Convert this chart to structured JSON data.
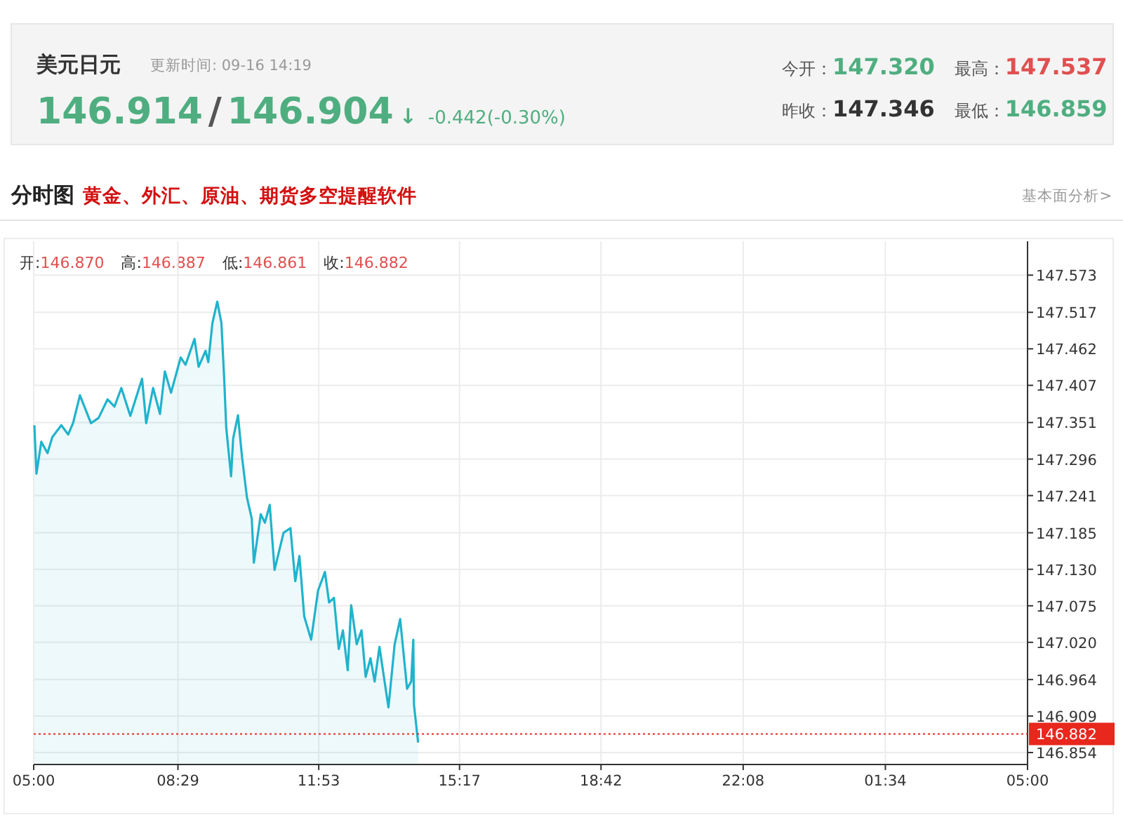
{
  "chart_data": {
    "type": "area",
    "title": "美元日元",
    "subtitle": "更新时间: 09-16 14:19",
    "annotations": [
      "146.914",
      "/",
      "146.904",
      "↓",
      "-0.442(-0.30%)",
      "今开：",
      "147.320",
      "最高：",
      "147.537",
      "昨收：",
      "147.346",
      "最低：",
      "146.859",
      "分时图",
      "黄金、外汇、原油、期货多空提醒软件",
      "基本面分析>",
      "开:",
      "146.870",
      "高:",
      "146.887",
      "低:",
      "146.861",
      "收:",
      "146.882"
    ],
    "x": [
      "--09-16T05:01",
      "--09-16T05:04",
      "--09-16T05:11",
      "--09-16T05:20",
      "--09-16T05:27",
      "--09-16T05:40",
      "--09-16T05:50",
      "--09-16T05:57",
      "--09-16T06:07",
      "--09-16T06:23",
      "--09-16T06:34",
      "--09-16T06:47",
      "--09-16T06:57",
      "--09-16T07:07",
      "--09-16T07:20",
      "--09-16T07:37",
      "--09-16T07:43",
      "--09-16T07:53",
      "--09-16T08:03",
      "--09-16T08:10",
      "--09-16T08:19",
      "--09-16T08:33",
      "--09-16T08:40",
      "--09-16T08:53",
      "--09-16T08:59",
      "--09-16T09:09",
      "--09-16T09:13",
      "--09-16T09:19",
      "--09-16T09:26",
      "--09-16T09:32",
      "--09-16T09:36",
      "--09-16T09:39",
      "--09-16T09:46",
      "--09-16T09:49",
      "--09-16T09:56",
      "--09-16T10:02",
      "--09-16T10:09",
      "--09-16T10:16",
      "--09-16T10:19",
      "--09-16T10:29",
      "--09-16T10:35",
      "--09-16T10:42",
      "--09-16T10:49",
      "--09-16T11:02",
      "--09-16T11:12",
      "--09-16T11:19",
      "--09-16T11:25",
      "--09-16T11:32",
      "--09-16T11:42",
      "--09-16T11:52",
      "--09-16T12:02",
      "--09-16T12:08",
      "--09-16T12:15",
      "--09-16T12:22",
      "--09-16T12:28",
      "--09-16T12:35",
      "--09-16T12:40",
      "--09-16T12:48",
      "--09-16T12:55",
      "--09-16T13:01",
      "--09-16T13:08",
      "--09-16T13:14",
      "--09-16T13:21",
      "--09-16T13:34",
      "--09-16T13:43",
      "--09-16T13:51",
      "--09-16T14:01",
      "--09-16T14:07",
      "--09-16T14:10",
      "--09-16T14:11",
      "--09-16T14:17"
    ],
    "series": [
      {
        "color": "#20b3cc",
        "values": [
          147.347,
          147.274,
          147.322,
          147.305,
          147.329,
          147.347,
          147.333,
          147.35,
          147.392,
          147.35,
          147.358,
          147.386,
          147.375,
          147.403,
          147.361,
          147.417,
          147.35,
          147.403,
          147.364,
          147.428,
          147.396,
          147.449,
          147.438,
          147.477,
          147.435,
          147.459,
          147.442,
          147.501,
          147.533,
          147.501,
          147.417,
          147.343,
          147.27,
          147.327,
          147.362,
          147.298,
          147.238,
          147.206,
          147.14,
          147.213,
          147.2,
          147.227,
          147.129,
          147.185,
          147.192,
          147.112,
          147.15,
          147.059,
          147.024,
          147.098,
          147.126,
          147.08,
          147.087,
          147.01,
          147.038,
          146.978,
          147.076,
          147.017,
          147.038,
          146.968,
          146.996,
          146.961,
          147.013,
          146.922,
          147.017,
          147.055,
          146.95,
          146.961,
          147.024,
          146.926,
          146.869
        ]
      }
    ],
    "xlim": [
      "--09-16T05:00",
      "--09-17T05:00"
    ],
    "ylim": [
      146.836,
      147.624
    ],
    "xticks": [
      {
        "value": "--09-16T05:00",
        "label": "05:00"
      },
      {
        "value": "--09-16T08:29",
        "label": "08:29"
      },
      {
        "value": "--09-16T11:53",
        "label": "11:53"
      },
      {
        "value": "--09-16T15:17",
        "label": "15:17"
      },
      {
        "value": "--09-16T18:42",
        "label": "18:42"
      },
      {
        "value": "--09-16T22:08",
        "label": "22:08"
      },
      {
        "value": "--09-17T01:34",
        "label": "01:34"
      },
      {
        "value": "--09-17T05:00",
        "label": "05:00"
      }
    ],
    "yticks": [
      {
        "value": 147.573,
        "label": "147.573"
      },
      {
        "value": 147.517,
        "label": "147.517"
      },
      {
        "value": 147.462,
        "label": "147.462"
      },
      {
        "value": 147.407,
        "label": "147.407"
      },
      {
        "value": 147.351,
        "label": "147.351"
      },
      {
        "value": 147.296,
        "label": "147.296"
      },
      {
        "value": 147.241,
        "label": "147.241"
      },
      {
        "value": 147.185,
        "label": "147.185"
      },
      {
        "value": 147.13,
        "label": "147.130"
      },
      {
        "value": 147.075,
        "label": "147.075"
      },
      {
        "value": 147.02,
        "label": "147.020"
      },
      {
        "value": 146.964,
        "label": "146.964"
      },
      {
        "value": 146.909,
        "label": "146.909"
      },
      {
        "value": 146.854,
        "label": "146.854"
      }
    ],
    "grid": true,
    "ref_lines": [
      {
        "axis": "y",
        "value": 146.882,
        "label": "146.882",
        "color": "#e8271d",
        "line_style": "dotted"
      }
    ]
  }
}
